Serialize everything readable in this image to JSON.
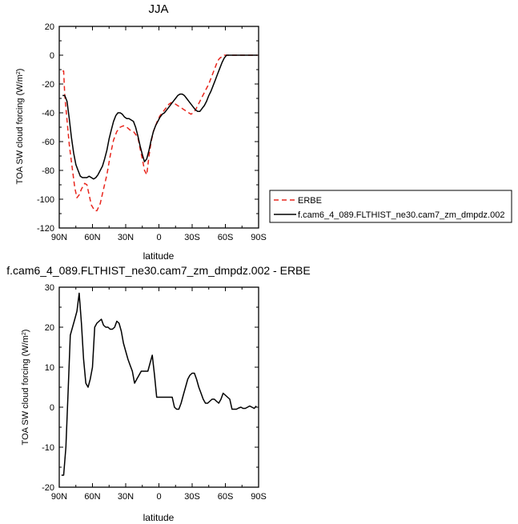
{
  "chart_data": [
    {
      "type": "line",
      "title": "JJA",
      "xlabel": "latitude",
      "ylabel_main": "TOA SW cloud forcing (W/m",
      "ylabel_sup": "2",
      "ylabel_close": ")",
      "xlim": [
        90,
        -90
      ],
      "ylim": [
        -120,
        20
      ],
      "x_ticks": [
        {
          "v": 90,
          "label": "90N"
        },
        {
          "v": 60,
          "label": "60N"
        },
        {
          "v": 30,
          "label": "30N"
        },
        {
          "v": 0,
          "label": "0"
        },
        {
          "v": -30,
          "label": "30S"
        },
        {
          "v": -60,
          "label": "60S"
        },
        {
          "v": -90,
          "label": "90S"
        }
      ],
      "y_ticks": [
        {
          "v": 20,
          "label": "20"
        },
        {
          "v": 0,
          "label": "0"
        },
        {
          "v": -20,
          "label": "-20"
        },
        {
          "v": -40,
          "label": "-40"
        },
        {
          "v": -60,
          "label": "-60"
        },
        {
          "v": -80,
          "label": "-80"
        },
        {
          "v": -100,
          "label": "-100"
        },
        {
          "v": -120,
          "label": "-120"
        }
      ],
      "series": [
        {
          "name": "ERBE",
          "color": "#e8261d",
          "dash": true,
          "x": [
            87,
            86,
            85,
            83,
            81,
            78,
            76,
            74,
            72,
            70,
            67,
            65,
            63,
            61,
            58,
            56,
            53,
            50,
            47,
            44,
            41,
            38,
            35,
            32,
            29,
            26,
            23,
            21,
            19,
            17,
            15,
            13,
            11,
            9,
            7,
            5,
            3,
            1,
            -1,
            -3,
            -5,
            -7,
            -9,
            -11,
            -13,
            -15,
            -17,
            -19,
            -21,
            -23,
            -25,
            -27,
            -29,
            -31,
            -33,
            -35,
            -37,
            -39,
            -41,
            -43,
            -45,
            -47,
            -49,
            -51,
            -53,
            -55,
            -57,
            -59,
            -61,
            -63,
            -65,
            -67,
            -69,
            -71,
            -73,
            -75,
            -77,
            -79,
            -81,
            -83,
            -85,
            -87,
            -89
          ],
          "y": [
            -11,
            -11,
            -28,
            -45,
            -62,
            -80,
            -92,
            -99,
            -97,
            -93,
            -89,
            -90,
            -97,
            -104,
            -108,
            -108,
            -103,
            -93,
            -83,
            -70,
            -59,
            -53,
            -50,
            -49,
            -50,
            -52,
            -53,
            -55,
            -57,
            -65,
            -72,
            -80,
            -83,
            -70,
            -60,
            -53,
            -49,
            -45,
            -42,
            -40,
            -38,
            -36,
            -34,
            -33,
            -33,
            -34,
            -35,
            -36,
            -37,
            -38,
            -39,
            -40,
            -41,
            -40,
            -38,
            -35,
            -32,
            -29,
            -26,
            -23,
            -20,
            -16,
            -12,
            -8,
            -4,
            -2,
            -1,
            0,
            0,
            0,
            0,
            0,
            0,
            0,
            0,
            0,
            0,
            0,
            0,
            0,
            0,
            0,
            0
          ]
        },
        {
          "name": "f.cam6_4_089.FLTHIST_ne30.cam7_zm_dmpdz.002",
          "color": "#000000",
          "dash": false,
          "x": [
            87,
            85,
            83,
            81,
            79,
            77,
            75,
            73,
            71,
            69,
            67,
            65,
            63,
            61,
            59,
            57,
            55,
            53,
            51,
            49,
            47,
            45,
            43,
            41,
            39,
            37,
            35,
            33,
            31,
            29,
            27,
            25,
            23,
            21,
            19,
            17,
            15,
            13,
            11,
            9,
            7,
            5,
            3,
            1,
            -1,
            -3,
            -5,
            -7,
            -9,
            -11,
            -13,
            -15,
            -17,
            -19,
            -21,
            -23,
            -25,
            -27,
            -29,
            -31,
            -33,
            -35,
            -37,
            -39,
            -41,
            -43,
            -45,
            -47,
            -49,
            -51,
            -53,
            -55,
            -57,
            -59,
            -61,
            -63,
            -65,
            -67,
            -69,
            -71,
            -73,
            -75,
            -77,
            -79,
            -81,
            -83,
            -85,
            -87,
            -89
          ],
          "y": [
            -28,
            -28,
            -32,
            -44,
            -57,
            -68,
            -76,
            -80,
            -84,
            -85,
            -85,
            -85,
            -84,
            -85,
            -86,
            -85,
            -83,
            -80,
            -77,
            -72,
            -66,
            -58,
            -52,
            -46,
            -42,
            -40,
            -40,
            -41,
            -43,
            -44,
            -44,
            -45,
            -46,
            -50,
            -56,
            -63,
            -69,
            -74,
            -72,
            -66,
            -59,
            -53,
            -49,
            -46,
            -43,
            -41,
            -40,
            -38,
            -36,
            -34,
            -32,
            -30,
            -28,
            -27,
            -27,
            -28,
            -30,
            -32,
            -34,
            -36,
            -38,
            -39,
            -39,
            -37,
            -35,
            -32,
            -28,
            -25,
            -21,
            -17,
            -13,
            -9,
            -5,
            -2,
            0,
            0,
            0,
            0,
            0,
            0,
            0,
            0,
            0,
            0,
            0,
            0,
            0,
            0,
            0
          ]
        }
      ],
      "legend": {
        "placement": "right"
      }
    },
    {
      "type": "line",
      "title": "f.cam6_4_089.FLTHIST_ne30.cam7_zm_dmpdz.002 - ERBE",
      "xlabel": "latitude",
      "ylabel_main": "TOA SW cloud forcing (W/m",
      "ylabel_sup": "2",
      "ylabel_close": ")",
      "xlim": [
        90,
        -90
      ],
      "ylim": [
        -20,
        30
      ],
      "x_ticks": [
        {
          "v": 90,
          "label": "90N"
        },
        {
          "v": 60,
          "label": "60N"
        },
        {
          "v": 30,
          "label": "30N"
        },
        {
          "v": 0,
          "label": "0"
        },
        {
          "v": -30,
          "label": "30S"
        },
        {
          "v": -60,
          "label": "60S"
        },
        {
          "v": -90,
          "label": "90S"
        }
      ],
      "y_ticks": [
        {
          "v": 30,
          "label": "30"
        },
        {
          "v": 20,
          "label": "20"
        },
        {
          "v": 10,
          "label": "10"
        },
        {
          "v": 0,
          "label": "0"
        },
        {
          "v": -10,
          "label": "-10"
        },
        {
          "v": -20,
          "label": "-20"
        }
      ],
      "series": [
        {
          "name": "f.cam6_4_089.FLTHIST_ne30.cam7_zm_dmpdz.002 - ERBE",
          "color": "#000000",
          "dash": false,
          "x": [
            88,
            86,
            84,
            82,
            80,
            78,
            76,
            74,
            72,
            70,
            68,
            66,
            64,
            62,
            60,
            58,
            56,
            54,
            52,
            50,
            48,
            46,
            44,
            42,
            40,
            38,
            36,
            34,
            32,
            30,
            28,
            26,
            24,
            22,
            20,
            18,
            16,
            14,
            12,
            10,
            8,
            6,
            4,
            2,
            0,
            -2,
            -4,
            -6,
            -8,
            -10,
            -12,
            -14,
            -16,
            -18,
            -20,
            -22,
            -24,
            -26,
            -28,
            -30,
            -32,
            -34,
            -36,
            -38,
            -40,
            -42,
            -44,
            -46,
            -48,
            -50,
            -52,
            -54,
            -56,
            -58,
            -60,
            -62,
            -64,
            -66,
            -68,
            -70,
            -72,
            -74,
            -76,
            -78,
            -80,
            -82,
            -84,
            -86,
            -88
          ],
          "y": [
            -17,
            -17,
            -10,
            4,
            18,
            20,
            22,
            24,
            28.5,
            21,
            12,
            6,
            5,
            7,
            10,
            20,
            21,
            21.5,
            22,
            20.5,
            20,
            20,
            19.5,
            19.5,
            20,
            21.5,
            21,
            19,
            16,
            14,
            12,
            10.5,
            9,
            6,
            7,
            8,
            9,
            9,
            9,
            9,
            11,
            13,
            8,
            2.5,
            2.5,
            2.5,
            2.5,
            2.5,
            2.5,
            2.5,
            2.5,
            0,
            -0.5,
            -0.5,
            1,
            3,
            5,
            7,
            8,
            8.5,
            8.5,
            7,
            5,
            3.5,
            2,
            1,
            1,
            1.5,
            2,
            2,
            1.5,
            1,
            2,
            3.5,
            3,
            2.5,
            2,
            -0.5,
            -0.5,
            -0.5,
            -0.2,
            0,
            -0.3,
            -0.3,
            0,
            0.3,
            0,
            -0.3,
            0.3
          ]
        }
      ]
    }
  ]
}
